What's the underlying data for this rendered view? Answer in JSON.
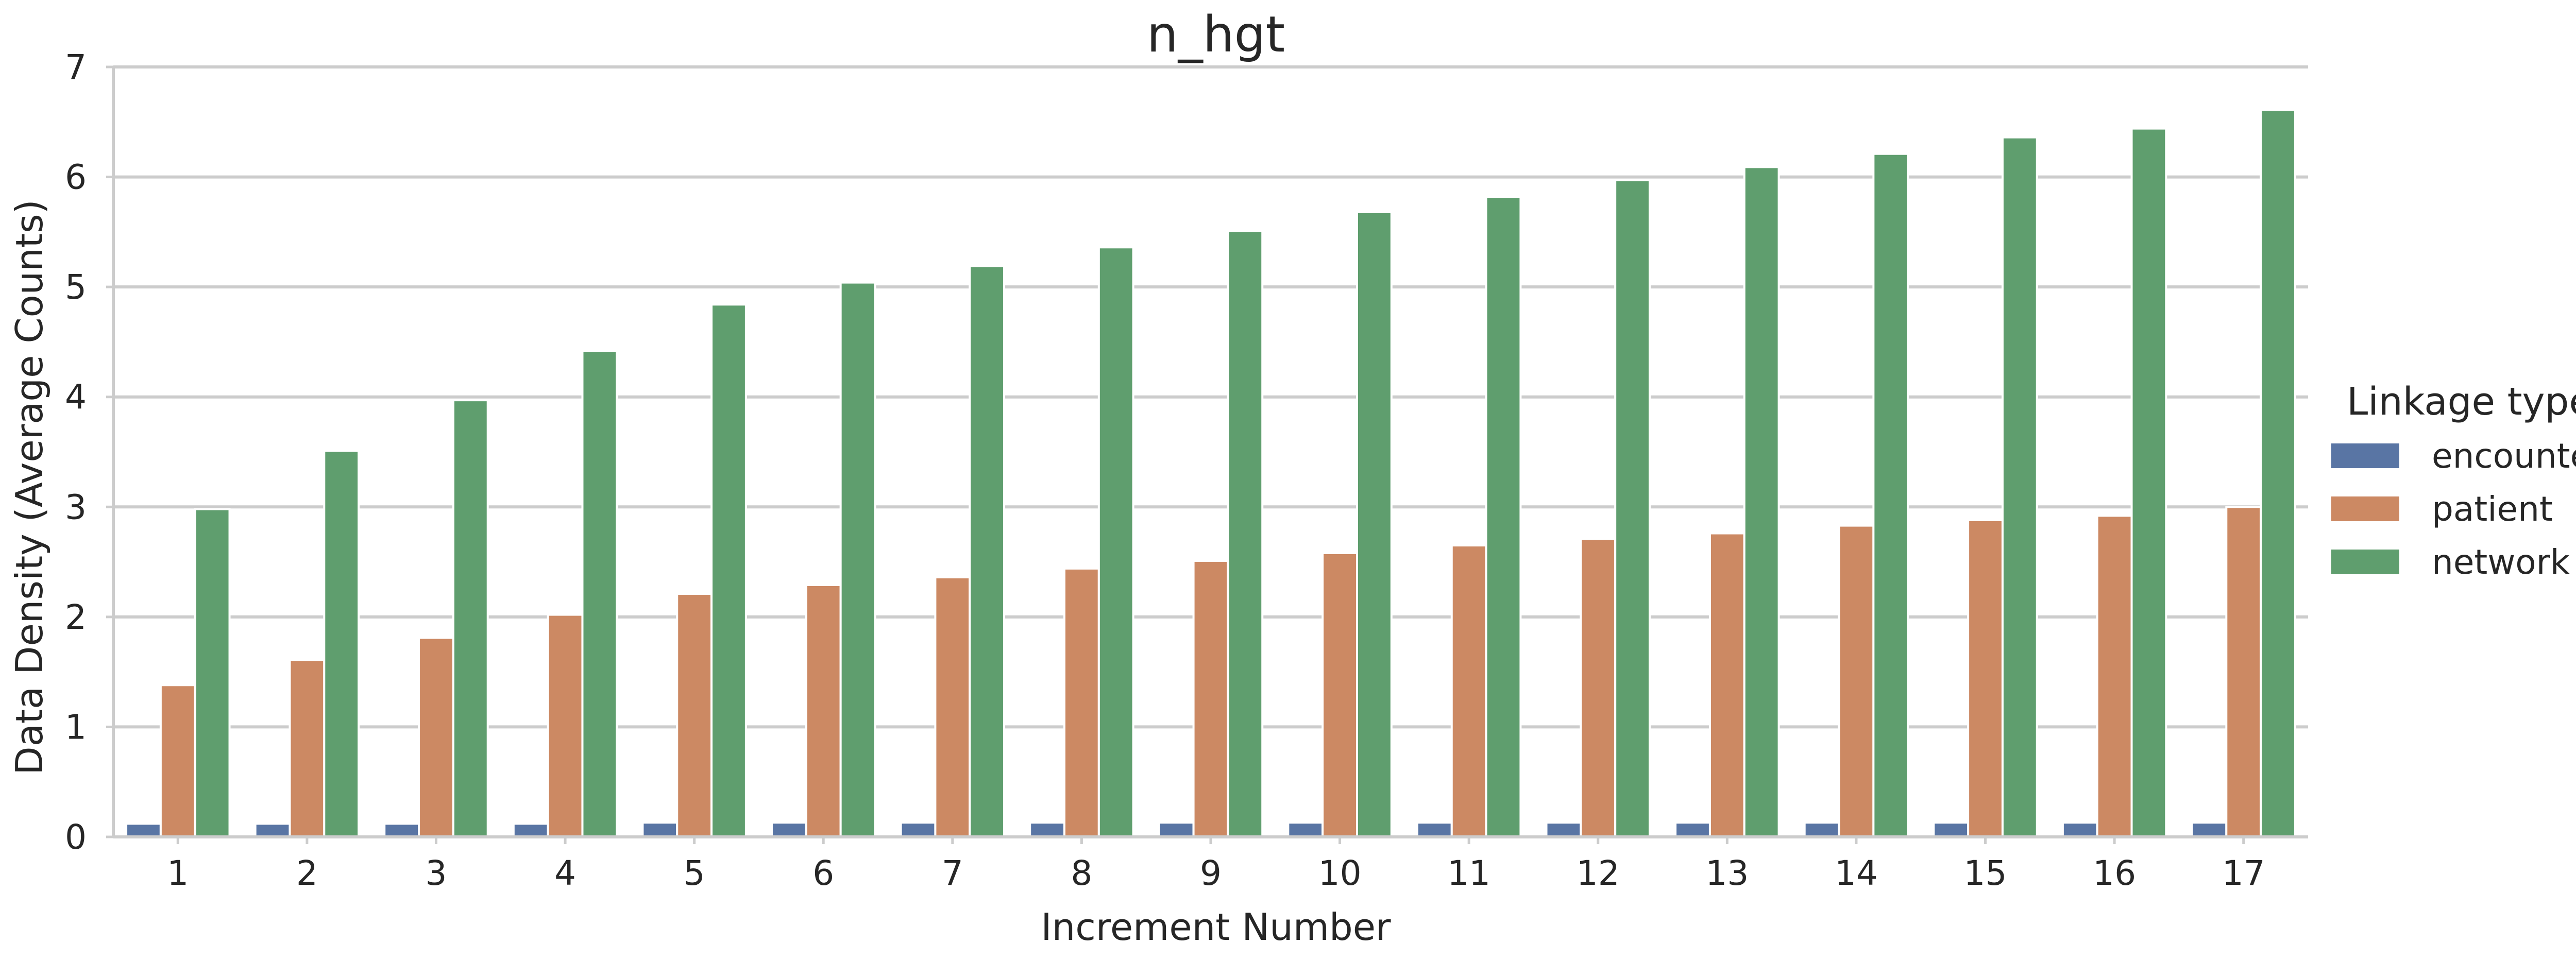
{
  "chart_data": {
    "type": "bar",
    "title": "n_hgt",
    "xlabel": "Increment Number",
    "ylabel": "Data Density (Average Counts)",
    "categories": [
      "1",
      "2",
      "3",
      "4",
      "5",
      "6",
      "7",
      "8",
      "9",
      "10",
      "11",
      "12",
      "13",
      "14",
      "15",
      "16",
      "17"
    ],
    "yticks": [
      0,
      1,
      2,
      3,
      4,
      5,
      6,
      7
    ],
    "ylim": [
      0,
      7
    ],
    "grid": true,
    "legend": {
      "title": "Linkage type",
      "placement": "right"
    },
    "series": [
      {
        "name": "encounter",
        "color": "#5975a4",
        "values": [
          0.12,
          0.12,
          0.12,
          0.12,
          0.13,
          0.13,
          0.13,
          0.13,
          0.13,
          0.13,
          0.13,
          0.13,
          0.13,
          0.13,
          0.13,
          0.13,
          0.13
        ]
      },
      {
        "name": "patient",
        "color": "#cc8963",
        "values": [
          1.38,
          1.61,
          1.81,
          2.02,
          2.21,
          2.29,
          2.36,
          2.44,
          2.51,
          2.58,
          2.65,
          2.71,
          2.76,
          2.83,
          2.88,
          2.92,
          3.0
        ]
      },
      {
        "name": "network",
        "color": "#5f9e6e",
        "values": [
          2.98,
          3.51,
          3.97,
          4.42,
          4.84,
          5.04,
          5.19,
          5.36,
          5.51,
          5.68,
          5.82,
          5.97,
          6.09,
          6.21,
          6.36,
          6.44,
          6.61
        ]
      }
    ]
  }
}
